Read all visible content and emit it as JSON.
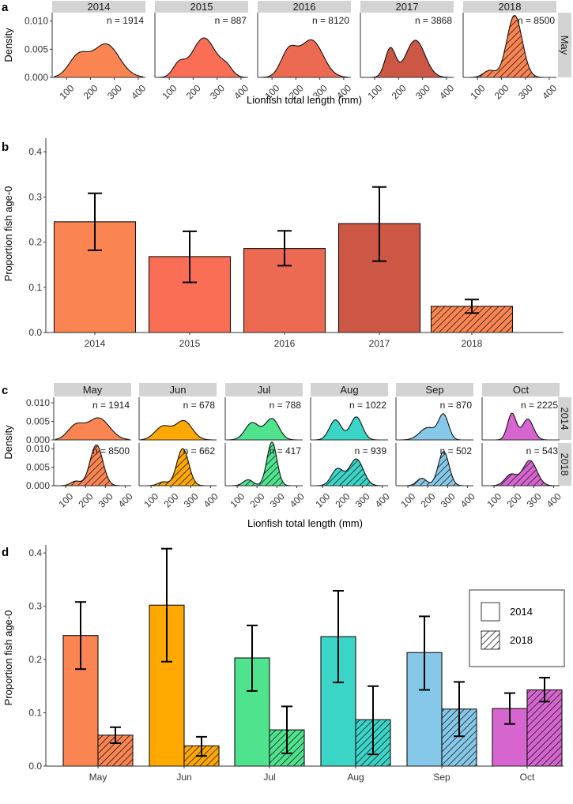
{
  "colors": {
    "2014": "#FB8552",
    "2015": "#F96E55",
    "2016": "#EC6A52",
    "2017": "#CC5744",
    "2018": "#FB8552",
    "May": "#FB8552",
    "Jun": "#FFA800",
    "Jul": "#4FE38E",
    "Aug": "#3BD5C8",
    "Sep": "#86C8E8",
    "Oct": "#D665D0",
    "strip": "#D3D3D3"
  },
  "panels": {
    "a": {
      "letter": "a"
    },
    "b": {
      "letter": "b"
    },
    "c": {
      "letter": "c"
    },
    "d": {
      "letter": "d"
    }
  },
  "chart_data": [
    {
      "id": "a",
      "type": "area",
      "title": "",
      "xlabel": "Lionfish total length (mm)",
      "ylabel": "Density",
      "xlim": [
        40,
        430
      ],
      "ylim": [
        0,
        0.0115
      ],
      "xticks": [
        "100",
        "200",
        "300",
        "400"
      ],
      "xtick_values": [
        100,
        200,
        300,
        400
      ],
      "yticks": [
        "0.000",
        "0.005",
        "0.010"
      ],
      "ytick_values": [
        0,
        0.005,
        0.01
      ],
      "row_strip": "May",
      "facets": [
        {
          "label": "2014",
          "n_label": "n = 1914",
          "color_key": "2014",
          "hatched": false,
          "components": [
            [
              150,
              40,
              0.0037
            ],
            [
              265,
              55,
              0.0059
            ]
          ]
        },
        {
          "label": "2015",
          "n_label": "n = 887",
          "color_key": "2015",
          "hatched": false,
          "components": [
            [
              140,
              25,
              0.0022
            ],
            [
              245,
              50,
              0.007
            ],
            [
              340,
              25,
              0.0015
            ]
          ]
        },
        {
          "label": "2016",
          "n_label": "n = 8120",
          "color_key": "2016",
          "hatched": false,
          "components": [
            [
              170,
              33,
              0.0045
            ],
            [
              265,
              48,
              0.0066
            ]
          ]
        },
        {
          "label": "2017",
          "n_label": "n = 3868",
          "color_key": "2017",
          "hatched": false,
          "components": [
            [
              165,
              22,
              0.0051
            ],
            [
              270,
              40,
              0.0066
            ]
          ]
        },
        {
          "label": "2018",
          "n_label": "n = 8500",
          "color_key": "2018",
          "hatched": true,
          "components": [
            [
              150,
              25,
              0.0012
            ],
            [
              255,
              32,
              0.011
            ]
          ]
        }
      ]
    },
    {
      "id": "b",
      "type": "bar",
      "title": "",
      "xlabel": "",
      "ylabel": "Proportion fish age-0",
      "ylim": [
        0,
        0.43
      ],
      "yticks": [
        "0.0",
        "0.1",
        "0.2",
        "0.3",
        "0.4"
      ],
      "ytick_values": [
        0,
        0.1,
        0.2,
        0.3,
        0.4
      ],
      "categories": [
        "2014",
        "2015",
        "2016",
        "2017",
        "2018"
      ],
      "values": [
        0.245,
        0.168,
        0.186,
        0.241,
        0.058
      ],
      "err_low": [
        0.182,
        0.111,
        0.148,
        0.158,
        0.043
      ],
      "err_high": [
        0.308,
        0.224,
        0.225,
        0.322,
        0.073
      ],
      "color_keys": [
        "2014",
        "2015",
        "2016",
        "2017",
        "2018"
      ],
      "hatched": [
        false,
        false,
        false,
        false,
        true
      ]
    },
    {
      "id": "c",
      "type": "area",
      "title": "",
      "xlabel": "Lionfish total length (mm)",
      "ylabel": "Density",
      "xlim": [
        40,
        430
      ],
      "ylim": [
        0,
        0.0115
      ],
      "xticks": [
        "100",
        "200",
        "300",
        "400"
      ],
      "xtick_values": [
        100,
        200,
        300,
        400
      ],
      "yticks": [
        "0.000",
        "0.005",
        "0.010"
      ],
      "ytick_values": [
        0,
        0.005,
        0.01
      ],
      "columns": [
        "May",
        "Jun",
        "Jul",
        "Aug",
        "Sep",
        "Oct"
      ],
      "rows": [
        "2014",
        "2018"
      ],
      "facets": [
        {
          "row": "2014",
          "col": "May",
          "n_label": "n = 1914",
          "hatched": false,
          "components": [
            [
              150,
              40,
              0.0037
            ],
            [
              265,
              55,
              0.0059
            ]
          ]
        },
        {
          "row": "2014",
          "col": "Jun",
          "n_label": "n = 678",
          "hatched": false,
          "components": [
            [
              160,
              40,
              0.0036
            ],
            [
              265,
              42,
              0.0051
            ]
          ]
        },
        {
          "row": "2014",
          "col": "Jul",
          "n_label": "n = 788",
          "hatched": false,
          "components": [
            [
              175,
              35,
              0.0046
            ],
            [
              275,
              35,
              0.0057
            ]
          ]
        },
        {
          "row": "2014",
          "col": "Aug",
          "n_label": "n = 1022",
          "hatched": false,
          "components": [
            [
              165,
              30,
              0.0054
            ],
            [
              270,
              30,
              0.0062
            ]
          ]
        },
        {
          "row": "2014",
          "col": "Sep",
          "n_label": "n = 870",
          "hatched": false,
          "components": [
            [
              200,
              40,
              0.0033
            ],
            [
              280,
              25,
              0.0066
            ]
          ]
        },
        {
          "row": "2014",
          "col": "Oct",
          "n_label": "n = 2225",
          "hatched": false,
          "components": [
            [
              190,
              22,
              0.0071
            ],
            [
              270,
              28,
              0.0056
            ]
          ]
        },
        {
          "row": "2018",
          "col": "May",
          "n_label": "n = 8500",
          "hatched": true,
          "components": [
            [
              150,
              25,
              0.0012
            ],
            [
              255,
              32,
              0.011
            ]
          ]
        },
        {
          "row": "2018",
          "col": "Jun",
          "n_label": "n = 662",
          "hatched": true,
          "components": [
            [
              160,
              25,
              0.001
            ],
            [
              260,
              30,
              0.01
            ]
          ]
        },
        {
          "row": "2018",
          "col": "Jul",
          "n_label": "n = 417",
          "hatched": true,
          "components": [
            [
              155,
              25,
              0.0016
            ],
            [
              275,
              25,
              0.0118
            ]
          ]
        },
        {
          "row": "2018",
          "col": "Aug",
          "n_label": "n = 939",
          "hatched": true,
          "components": [
            [
              175,
              30,
              0.0045
            ],
            [
              270,
              35,
              0.0072
            ]
          ]
        },
        {
          "row": "2018",
          "col": "Sep",
          "n_label": "n = 502",
          "hatched": true,
          "components": [
            [
              170,
              25,
              0.002
            ],
            [
              280,
              27,
              0.0092
            ]
          ]
        },
        {
          "row": "2018",
          "col": "Oct",
          "n_label": "n = 543",
          "hatched": true,
          "components": [
            [
              185,
              30,
              0.003
            ],
            [
              280,
              35,
              0.0068
            ]
          ]
        }
      ]
    },
    {
      "id": "d",
      "type": "bar",
      "title": "",
      "xlabel": "",
      "ylabel": "Proportion fish age-0",
      "ylim": [
        0,
        0.415
      ],
      "yticks": [
        "0.0",
        "0.1",
        "0.2",
        "0.3",
        "0.4"
      ],
      "ytick_values": [
        0,
        0.1,
        0.2,
        0.3,
        0.4
      ],
      "categories": [
        "May",
        "Jun",
        "Jul",
        "Aug",
        "Sep",
        "Oct"
      ],
      "legend": {
        "position": "top-right",
        "entries": [
          {
            "label": "2014",
            "hatched": false
          },
          {
            "label": "2018",
            "hatched": true
          }
        ]
      },
      "series": [
        {
          "name": "2014",
          "hatched": false,
          "values": [
            0.245,
            0.302,
            0.203,
            0.243,
            0.213,
            0.108
          ],
          "err_low": [
            0.182,
            0.196,
            0.141,
            0.157,
            0.143,
            0.079
          ],
          "err_high": [
            0.308,
            0.408,
            0.264,
            0.329,
            0.281,
            0.137
          ]
        },
        {
          "name": "2018",
          "hatched": true,
          "values": [
            0.058,
            0.038,
            0.068,
            0.087,
            0.107,
            0.143
          ],
          "err_low": [
            0.043,
            0.019,
            0.024,
            0.022,
            0.056,
            0.121
          ],
          "err_high": [
            0.073,
            0.055,
            0.112,
            0.15,
            0.158,
            0.166
          ]
        }
      ]
    }
  ]
}
